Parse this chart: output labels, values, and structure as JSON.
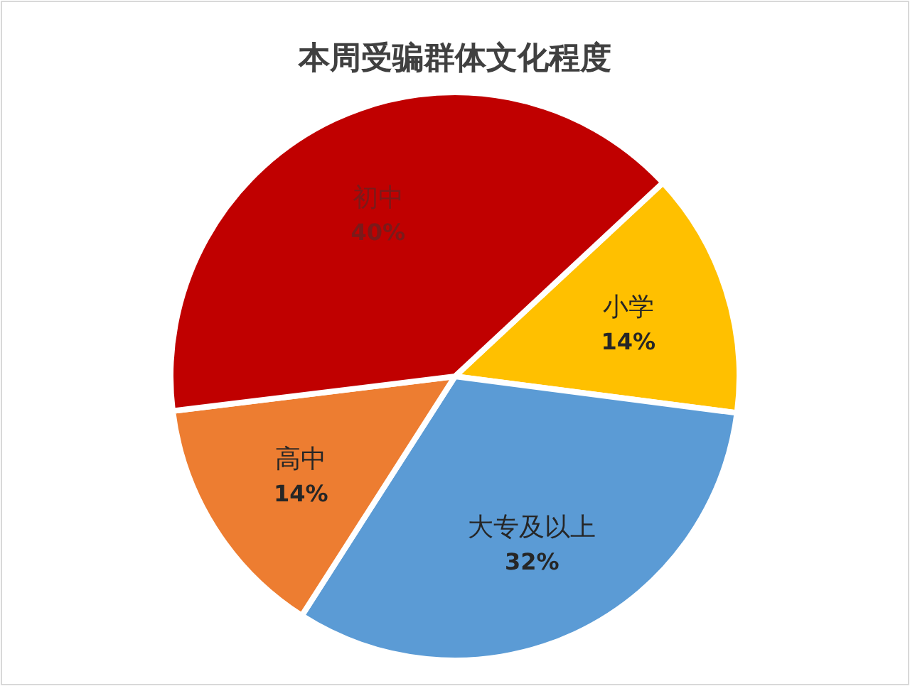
{
  "chart_data": {
    "type": "pie",
    "title": "本周受骗群体文化程度",
    "categories": [
      "小学",
      "大专及以上",
      "高中",
      "初中"
    ],
    "values": [
      14,
      32,
      14,
      40
    ],
    "value_labels": [
      "14%",
      "32%",
      "14%",
      "40%"
    ],
    "colors": [
      "#ffc000",
      "#5b9bd5",
      "#ed7d31",
      "#c00000"
    ]
  }
}
